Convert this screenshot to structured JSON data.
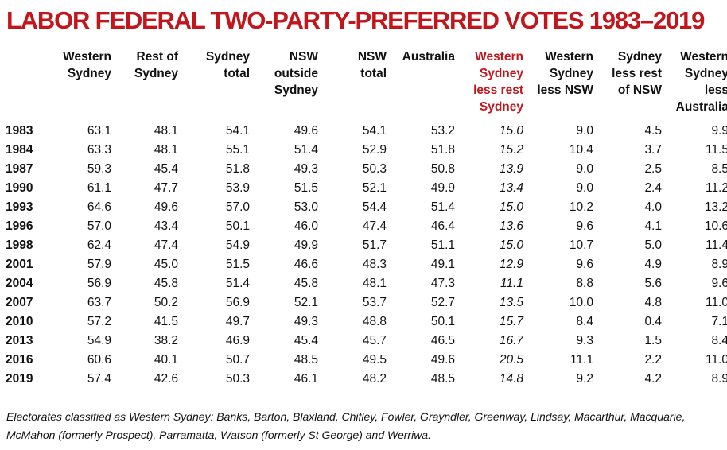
{
  "title": "LABOR FEDERAL TWO-PARTY-PREFERRED VOTES 1983–2019",
  "columns": [
    {
      "label": "",
      "accent": false
    },
    {
      "label": "Western\nSydney",
      "accent": false
    },
    {
      "label": "Rest of\nSydney",
      "accent": false
    },
    {
      "label": "Sydney\ntotal",
      "accent": false
    },
    {
      "label": "NSW\noutside\nSydney",
      "accent": false
    },
    {
      "label": "NSW\ntotal",
      "accent": false
    },
    {
      "label": "Australia",
      "accent": false
    },
    {
      "label": "Western\nSydney\nless rest\nSydney",
      "accent": true
    },
    {
      "label": "Western\nSydney\nless NSW",
      "accent": false
    },
    {
      "label": "Sydney\nless rest\nof NSW",
      "accent": false
    },
    {
      "label": "Western\nSydney\nless\nAustralia",
      "accent": false
    }
  ],
  "rows": [
    [
      "1983",
      "63.1",
      "48.1",
      "54.1",
      "49.6",
      "54.1",
      "53.2",
      "15.0",
      "9.0",
      "4.5",
      "9.9"
    ],
    [
      "1984",
      "63.3",
      "48.1",
      "55.1",
      "51.4",
      "52.9",
      "51.8",
      "15.2",
      "10.4",
      "3.7",
      "11.5"
    ],
    [
      "1987",
      "59.3",
      "45.4",
      "51.8",
      "49.3",
      "50.3",
      "50.8",
      "13.9",
      "9.0",
      "2.5",
      "8.5"
    ],
    [
      "1990",
      "61.1",
      "47.7",
      "53.9",
      "51.5",
      "52.1",
      "49.9",
      "13.4",
      "9.0",
      "2.4",
      "11.2"
    ],
    [
      "1993",
      "64.6",
      "49.6",
      "57.0",
      "53.0",
      "54.4",
      "51.4",
      "15.0",
      "10.2",
      "4.0",
      "13.2"
    ],
    [
      "1996",
      "57.0",
      "43.4",
      "50.1",
      "46.0",
      "47.4",
      "46.4",
      "13.6",
      "9.6",
      "4.1",
      "10.6"
    ],
    [
      "1998",
      "62.4",
      "47.4",
      "54.9",
      "49.9",
      "51.7",
      "51.1",
      "15.0",
      "10.7",
      "5.0",
      "11.4"
    ],
    [
      "2001",
      "57.9",
      "45.0",
      "51.5",
      "46.6",
      "48.3",
      "49.1",
      "12.9",
      "9.6",
      "4.9",
      "8.9"
    ],
    [
      "2004",
      "56.9",
      "45.8",
      "51.4",
      "45.8",
      "48.1",
      "47.3",
      "11.1",
      "8.8",
      "5.6",
      "9.6"
    ],
    [
      "2007",
      "63.7",
      "50.2",
      "56.9",
      "52.1",
      "53.7",
      "52.7",
      "13.5",
      "10.0",
      "4.8",
      "11.0"
    ],
    [
      "2010",
      "57.2",
      "41.5",
      "49.7",
      "49.3",
      "48.8",
      "50.1",
      "15.7",
      "8.4",
      "0.4",
      "7.1"
    ],
    [
      "2013",
      "54.9",
      "38.2",
      "46.9",
      "45.4",
      "45.7",
      "46.5",
      "16.7",
      "9.3",
      "1.5",
      "8.4"
    ],
    [
      "2016",
      "60.6",
      "40.1",
      "50.7",
      "48.5",
      "49.5",
      "49.6",
      "20.5",
      "11.1",
      "2.2",
      "11.0"
    ],
    [
      "2019",
      "57.4",
      "42.6",
      "50.3",
      "46.1",
      "48.2",
      "48.5",
      "14.8",
      "9.2",
      "4.2",
      "8.9"
    ]
  ],
  "italic_column_index": 7,
  "colors": {
    "accent": "#c3161c",
    "text": "#111111",
    "background": "#ffffff"
  },
  "footnote": "Electorates classified as Western Sydney: Banks, Barton, Blaxland, Chifley, Fowler, Grayndler, Greenway, Lindsay, Macarthur, Macquarie, McMahon (formerly Prospect), Parramatta, Watson (formerly St George) and Werriwa."
}
